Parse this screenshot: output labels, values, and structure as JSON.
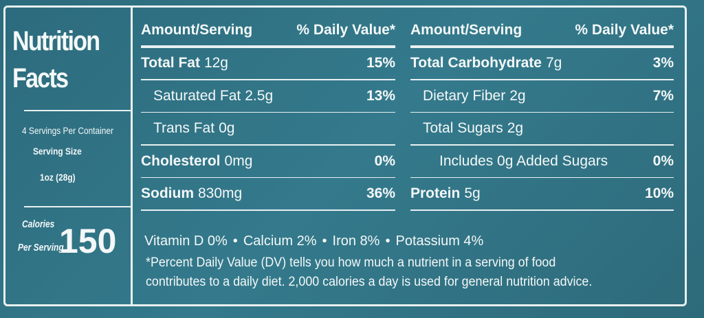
{
  "sidebar": {
    "title": [
      "Nutrition",
      "Facts"
    ],
    "servings_per_container": "4 Servings Per Container",
    "serving_size_label": "Serving Size",
    "serving_size": "1oz (28g)",
    "calories_label": [
      "Calories",
      "Per Serving"
    ],
    "calories": "150"
  },
  "left_table": {
    "header": [
      "Amount/Serving",
      "% Daily Value*"
    ],
    "rows": [
      {
        "name": "Total Fat",
        "amount": "12g",
        "dv": "15%"
      },
      {
        "name": "Saturated Fat",
        "amount": "2.5g",
        "dv": "13%"
      },
      {
        "name": "Trans Fat",
        "amount": "0g"
      },
      {
        "name": "Cholesterol",
        "amount": "0mg",
        "dv": "0%"
      },
      {
        "name": "Sodium",
        "amount": "830mg",
        "dv": "36%"
      }
    ]
  },
  "right_table": {
    "header": [
      "Amount/Serving",
      "% Daily Value*"
    ],
    "rows": [
      {
        "name": "Total Carbohydrate",
        "amount": "7g",
        "dv": "3%"
      },
      {
        "name": "Dietary Fiber",
        "amount": "2g",
        "dv": "7%"
      },
      {
        "name": "Total Sugars",
        "amount": "2g"
      },
      {
        "name": "Includes 0g Added Sugars",
        "dv": "0%"
      },
      {
        "name": "Protein",
        "amount": "5g",
        "dv": "10%"
      }
    ]
  },
  "vitamins": {
    "items": [
      "Vitamin D 0%",
      "Calcium 2%",
      "Iron 8%",
      "Potassium 4%"
    ],
    "separator": "•"
  },
  "footnote": [
    "*Percent Daily Value (DV) tells you how much a nutrient in a serving of food",
    "contributes to a daily diet. 2,000 calories a day is used for general nutrition advice."
  ]
}
